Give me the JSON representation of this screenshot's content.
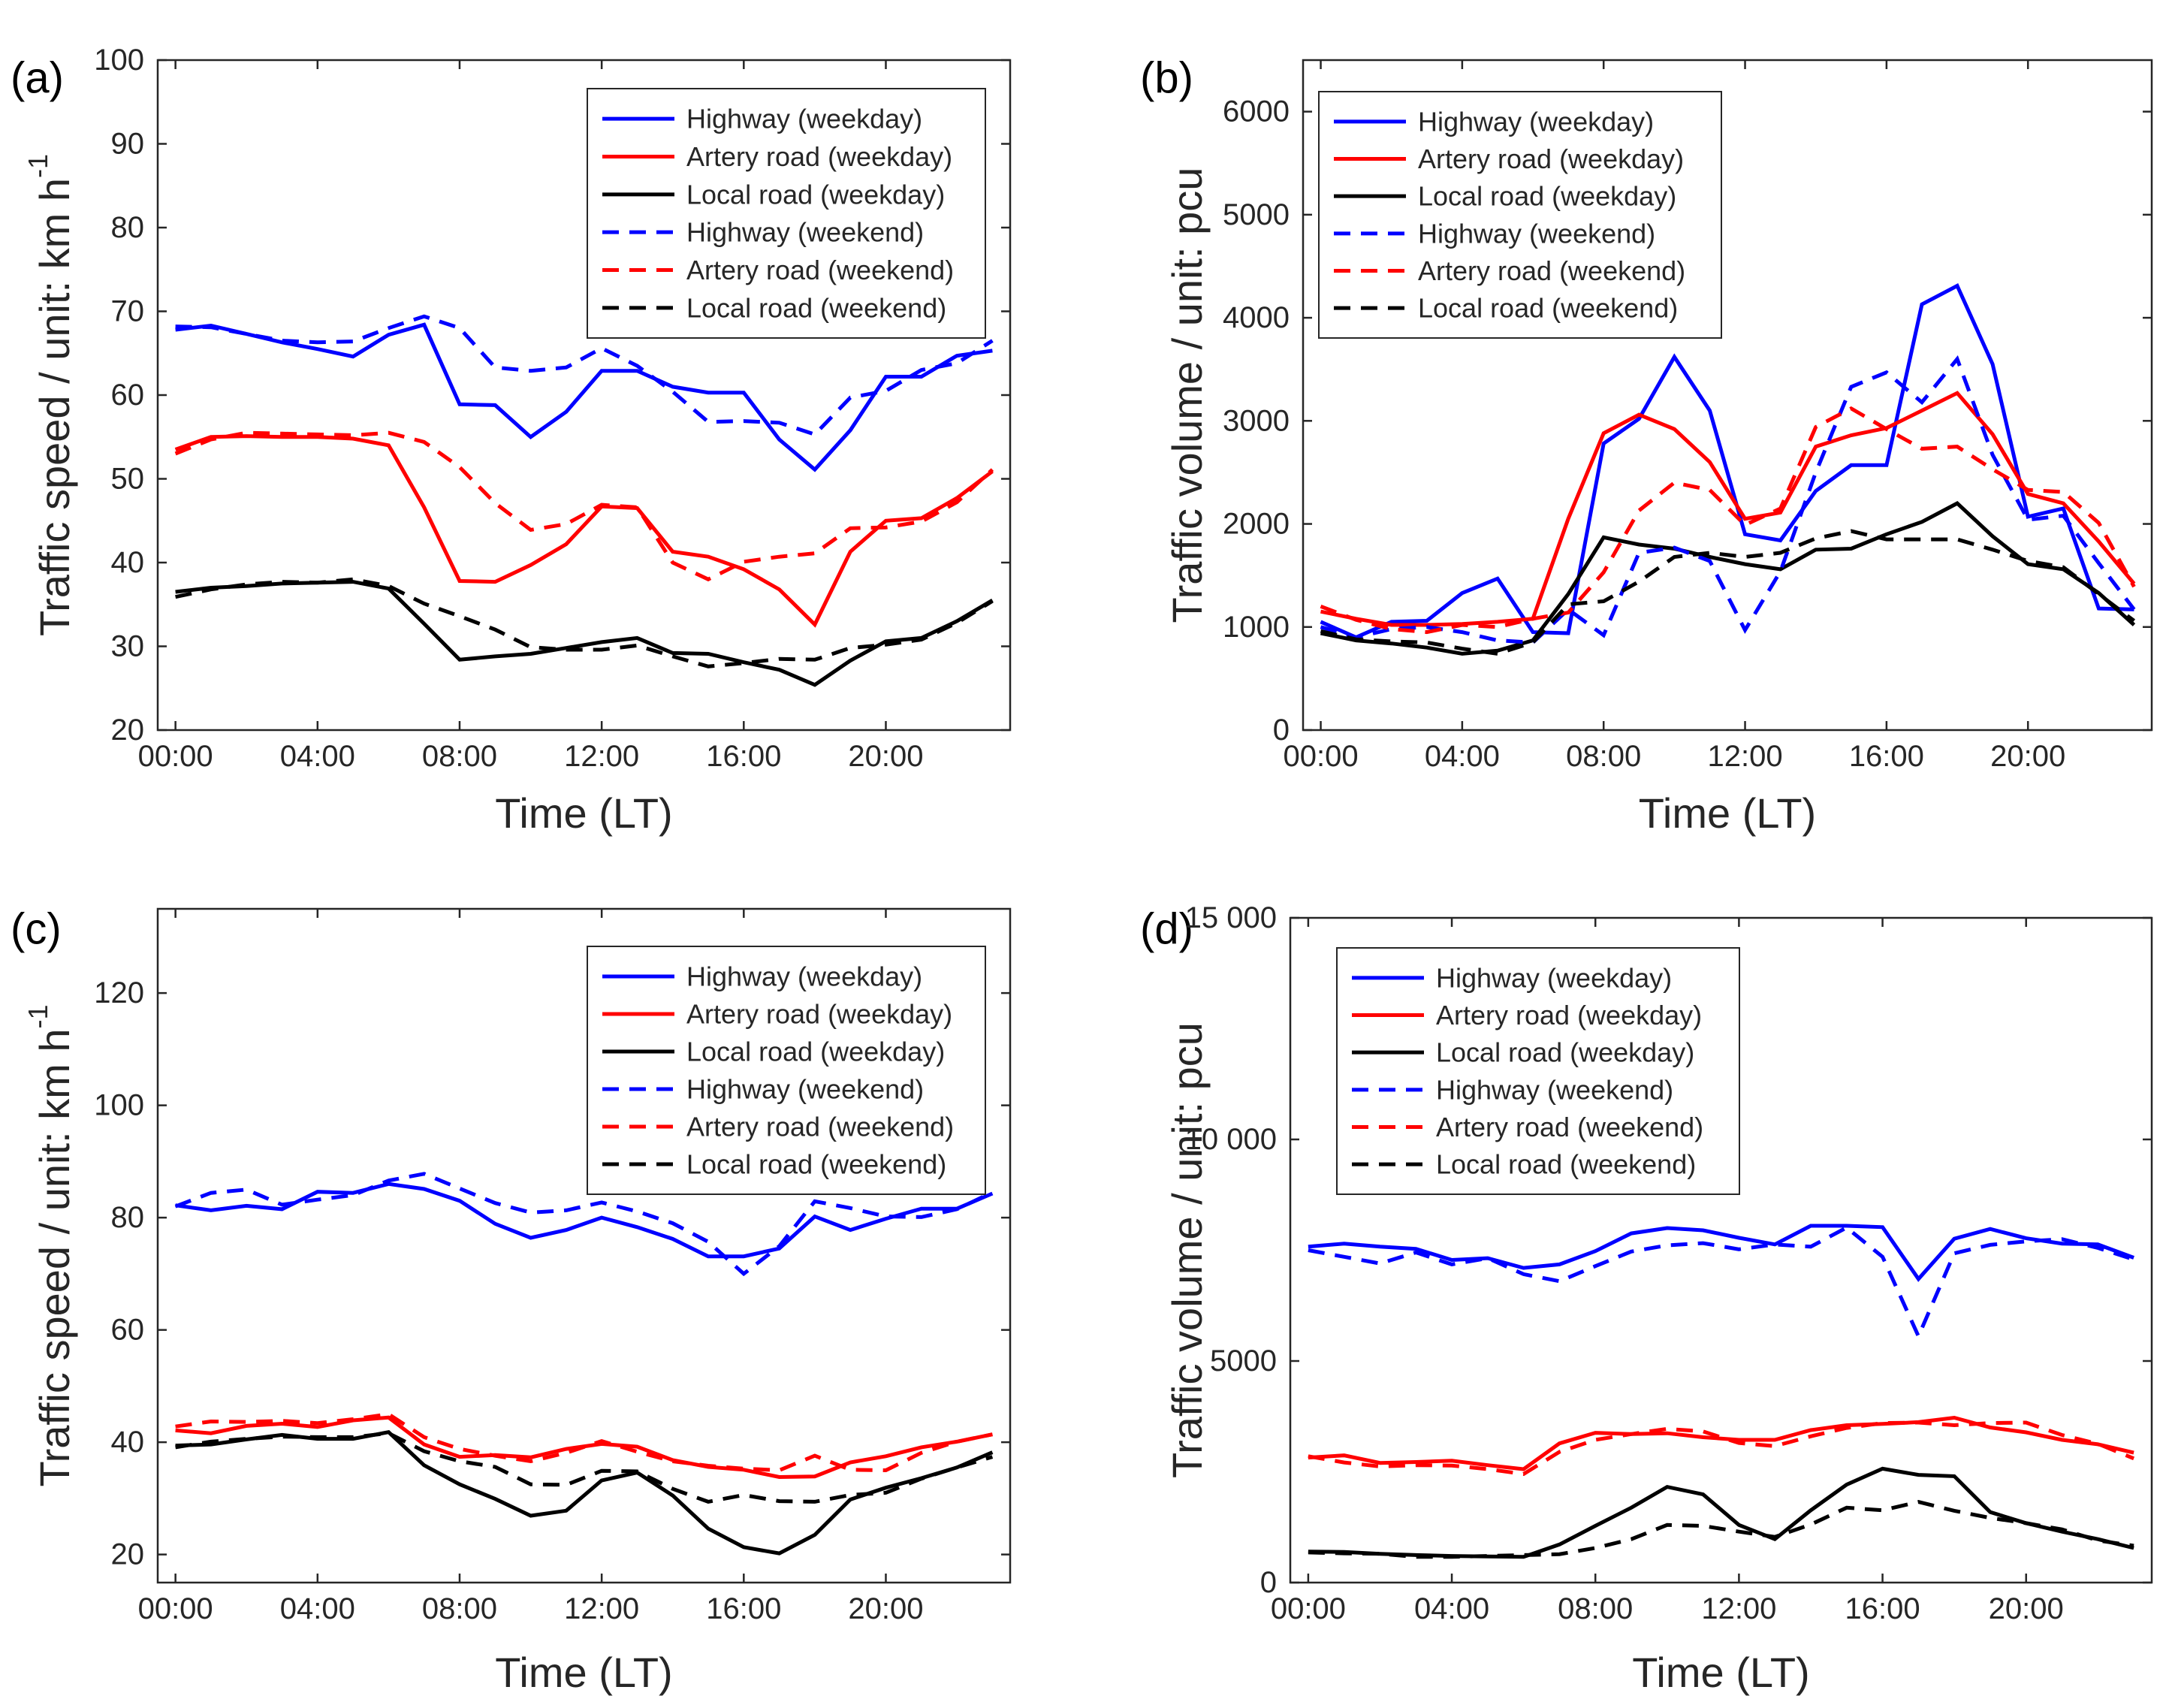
{
  "figure": {
    "background": "#ffffff",
    "axis_color": "#262626"
  },
  "series_styles": [
    {
      "color": "#0000ff",
      "dash": "solid"
    },
    {
      "color": "#ff0000",
      "dash": "solid"
    },
    {
      "color": "#000000",
      "dash": "solid"
    },
    {
      "color": "#0000ff",
      "dash": "dashed"
    },
    {
      "color": "#ff0000",
      "dash": "dashed"
    },
    {
      "color": "#000000",
      "dash": "dashed"
    }
  ],
  "chart_data": [
    {
      "panel": "(a)",
      "type": "line",
      "xlabel": "Time (LT)",
      "ylabel": "Traffic speed / unit: km h",
      "ylabel_superscript": "-1",
      "x": [
        0,
        1,
        2,
        3,
        4,
        5,
        6,
        7,
        8,
        9,
        10,
        11,
        12,
        13,
        14,
        15,
        16,
        17,
        18,
        19,
        20,
        21,
        22,
        23
      ],
      "xlim": [
        -0.5,
        23.5
      ],
      "ylim": [
        20,
        100
      ],
      "xticks": [
        0,
        4,
        8,
        12,
        16,
        20
      ],
      "xtick_labels": [
        "00:00",
        "04:00",
        "08:00",
        "12:00",
        "16:00",
        "20:00"
      ],
      "yticks": [
        20,
        30,
        40,
        50,
        60,
        70,
        80,
        90,
        100
      ],
      "ytick_labels": [
        "20",
        "30",
        "40",
        "50",
        "60",
        "70",
        "80",
        "90",
        "100"
      ],
      "grid": false,
      "legend_position": "top-right",
      "series": [
        {
          "name": "Highway (weekday)",
          "values": [
            67.8,
            68.3,
            67.3,
            66.3,
            65.5,
            64.6,
            67.2,
            68.4,
            58.9,
            58.8,
            55,
            58,
            62.9,
            62.9,
            61,
            60.3,
            60.3,
            54.7,
            51.1,
            55.8,
            62.2,
            62.2,
            64.7,
            65.3
          ]
        },
        {
          "name": "Artery road (weekday)",
          "values": [
            53.5,
            55,
            55.1,
            55,
            55,
            54.8,
            54,
            46.6,
            37.8,
            37.7,
            39.7,
            42.2,
            46.7,
            46.5,
            41.3,
            40.7,
            39.2,
            36.8,
            32.6,
            41.3,
            45,
            45.3,
            47.7,
            50.9
          ]
        },
        {
          "name": "Local road (weekday)",
          "values": [
            36.5,
            37,
            37.2,
            37.5,
            37.6,
            37.7,
            36.9,
            32.7,
            28.4,
            28.8,
            29.1,
            29.8,
            30.5,
            31,
            29.2,
            29.1,
            28.1,
            27.2,
            25.4,
            28.3,
            30.6,
            31,
            33,
            35.5
          ]
        },
        {
          "name": "Highway (weekend)",
          "values": [
            68.2,
            68.1,
            67.3,
            66.5,
            66.3,
            66.4,
            68,
            69.4,
            68,
            63.3,
            62.9,
            63.3,
            65.6,
            63.5,
            60.4,
            56.8,
            56.9,
            56.7,
            55.3,
            59.7,
            60.5,
            63,
            63.8,
            66.5
          ]
        },
        {
          "name": "Artery road (weekend)",
          "values": [
            53,
            54.7,
            55.5,
            55.4,
            55.3,
            55.2,
            55.5,
            54.4,
            51.4,
            47.1,
            43.9,
            44.6,
            46.9,
            46.6,
            40,
            38,
            40.1,
            40.7,
            41.1,
            44.1,
            44.2,
            44.9,
            47.2,
            51.1
          ]
        },
        {
          "name": "Local road (weekend)",
          "values": [
            35.9,
            36.8,
            37.4,
            37.7,
            37.6,
            38,
            37.2,
            35.1,
            33.6,
            32,
            29.9,
            29.6,
            29.6,
            30.1,
            28.8,
            27.6,
            28,
            28.5,
            28.4,
            29.8,
            30.2,
            30.8,
            32.8,
            35.4
          ]
        }
      ]
    },
    {
      "panel": "(b)",
      "type": "line",
      "xlabel": "Time (LT)",
      "ylabel": "Traffic volume / unit: pcu",
      "x": [
        0,
        1,
        2,
        3,
        4,
        5,
        6,
        7,
        8,
        9,
        10,
        11,
        12,
        13,
        14,
        15,
        16,
        17,
        18,
        19,
        20,
        21,
        22,
        23
      ],
      "xlim": [
        -0.5,
        23.5
      ],
      "ylim": [
        0,
        6500
      ],
      "xticks": [
        0,
        4,
        8,
        12,
        16,
        20
      ],
      "xtick_labels": [
        "00:00",
        "04:00",
        "08:00",
        "12:00",
        "16:00",
        "20:00"
      ],
      "yticks": [
        0,
        1000,
        2000,
        3000,
        4000,
        5000,
        6000
      ],
      "ytick_labels": [
        "0",
        "1000",
        "2000",
        "3000",
        "4000",
        "5000",
        "6000"
      ],
      "grid": false,
      "legend_position": "top-left",
      "series": [
        {
          "name": "Highway (weekday)",
          "values": [
            1050,
            900,
            1050,
            1060,
            1330,
            1470,
            950,
            940,
            2780,
            3020,
            3620,
            3100,
            1900,
            1840,
            2320,
            2570,
            2570,
            4130,
            4310,
            3550,
            2070,
            2150,
            1180,
            1170
          ]
        },
        {
          "name": "Artery road (weekday)",
          "values": [
            1150,
            1080,
            1020,
            1020,
            1030,
            1050,
            1080,
            2050,
            2880,
            3060,
            2920,
            2600,
            2050,
            2110,
            2750,
            2860,
            2930,
            3100,
            3270,
            2870,
            2290,
            2200,
            1830,
            1420
          ]
        },
        {
          "name": "Local road (weekday)",
          "values": [
            940,
            870,
            840,
            800,
            740,
            770,
            870,
            1320,
            1870,
            1800,
            1760,
            1680,
            1610,
            1560,
            1750,
            1760,
            1900,
            2020,
            2200,
            1880,
            1610,
            1560,
            1330,
            1020
          ]
        },
        {
          "name": "Highway (weekend)",
          "values": [
            1000,
            900,
            980,
            1000,
            950,
            870,
            850,
            1170,
            920,
            1720,
            1770,
            1640,
            970,
            1540,
            2500,
            3330,
            3470,
            3180,
            3600,
            2670,
            2040,
            2080,
            1620,
            1170
          ]
        },
        {
          "name": "Artery road (weekend)",
          "values": [
            1200,
            1070,
            980,
            950,
            1020,
            1000,
            1080,
            1140,
            1530,
            2130,
            2400,
            2330,
            1990,
            2150,
            2940,
            3120,
            2920,
            2730,
            2750,
            2530,
            2330,
            2310,
            2010,
            1390
          ]
        },
        {
          "name": "Local road (weekend)",
          "values": [
            960,
            880,
            860,
            850,
            790,
            740,
            850,
            1220,
            1250,
            1440,
            1680,
            1720,
            1680,
            1720,
            1860,
            1930,
            1850,
            1850,
            1850,
            1750,
            1640,
            1580,
            1320,
            1060
          ]
        }
      ]
    },
    {
      "panel": "(c)",
      "type": "line",
      "xlabel": "Time (LT)",
      "ylabel": "Traffic speed / unit: km h",
      "ylabel_superscript": "-1",
      "x": [
        0,
        1,
        2,
        3,
        4,
        5,
        6,
        7,
        8,
        9,
        10,
        11,
        12,
        13,
        14,
        15,
        16,
        17,
        18,
        19,
        20,
        21,
        22,
        23
      ],
      "xlim": [
        -0.5,
        23.5
      ],
      "ylim": [
        15,
        135
      ],
      "xticks": [
        0,
        4,
        8,
        12,
        16,
        20
      ],
      "xtick_labels": [
        "00:00",
        "04:00",
        "08:00",
        "12:00",
        "16:00",
        "20:00"
      ],
      "yticks": [
        20,
        40,
        60,
        80,
        100,
        120
      ],
      "ytick_labels": [
        "20",
        "40",
        "60",
        "80",
        "100",
        "120"
      ],
      "grid": false,
      "legend_position": "top-right",
      "series": [
        {
          "name": "Highway (weekday)",
          "values": [
            82.2,
            81.3,
            82.1,
            81.5,
            84.6,
            84.4,
            86,
            85.1,
            83,
            78.9,
            76.4,
            77.8,
            80,
            78.3,
            76.2,
            73.1,
            73.1,
            74.5,
            80.2,
            77.8,
            79.8,
            81.6,
            81.6,
            84.3
          ]
        },
        {
          "name": "Artery road (weekday)",
          "values": [
            42.1,
            41.6,
            42.9,
            43.3,
            42.7,
            43.9,
            44.4,
            39.6,
            37.4,
            37.7,
            37.3,
            38.8,
            39.7,
            39.2,
            36.8,
            35.6,
            35.1,
            33.8,
            33.9,
            36.4,
            37.5,
            39.1,
            40.1,
            41.4
          ]
        },
        {
          "name": "Local road (weekday)",
          "values": [
            39.4,
            39.6,
            40.5,
            41.3,
            40.6,
            40.6,
            41.8,
            35.9,
            32.5,
            29.9,
            26.9,
            27.8,
            33.2,
            34.6,
            30.5,
            24.6,
            21.3,
            20.2,
            23.5,
            29.8,
            31.9,
            33.6,
            35.5,
            38.2
          ]
        },
        {
          "name": "Highway (weekend)",
          "values": [
            82,
            84.4,
            85,
            82.3,
            83.2,
            84,
            86.6,
            87.8,
            85.2,
            82.6,
            80.9,
            81.3,
            82.7,
            81.1,
            79,
            75.7,
            70,
            74.9,
            82.9,
            81.7,
            80.2,
            80.1,
            81.5,
            84.5
          ]
        },
        {
          "name": "Artery road (weekend)",
          "values": [
            42.8,
            43.7,
            43.6,
            43.8,
            43.4,
            44.1,
            45,
            40.9,
            38.8,
            37.6,
            36.6,
            38.1,
            40.2,
            38.3,
            36.6,
            35.8,
            35.3,
            35,
            37.6,
            35.1,
            35,
            38.1,
            40.1,
            41.4
          ]
        },
        {
          "name": "Local road (weekend)",
          "values": [
            39.1,
            40.1,
            40.6,
            41,
            40.9,
            40.9,
            41.6,
            38.4,
            36.6,
            35.6,
            32.5,
            32.4,
            34.9,
            34.8,
            31.7,
            29.4,
            30.6,
            29.5,
            29.4,
            30.6,
            31,
            33.5,
            35.5,
            37.4
          ]
        }
      ]
    },
    {
      "panel": "(d)",
      "type": "line",
      "xlabel": "Time (LT)",
      "ylabel": "Traffic volume / unit: pcu",
      "x": [
        0,
        1,
        2,
        3,
        4,
        5,
        6,
        7,
        8,
        9,
        10,
        11,
        12,
        13,
        14,
        15,
        16,
        17,
        18,
        19,
        20,
        21,
        22,
        23
      ],
      "xlim": [
        -0.5,
        23.5
      ],
      "ylim": [
        0,
        15000
      ],
      "xticks": [
        0,
        4,
        8,
        12,
        16,
        20
      ],
      "xtick_labels": [
        "00:00",
        "04:00",
        "08:00",
        "12:00",
        "16:00",
        "20:00"
      ],
      "yticks": [
        0,
        5000,
        10000,
        15000
      ],
      "ytick_labels": [
        "0",
        "5000",
        "10 000",
        "15 000"
      ],
      "grid": false,
      "legend_position": "top-left",
      "series": [
        {
          "name": "Highway (weekday)",
          "values": [
            7580,
            7650,
            7580,
            7530,
            7280,
            7320,
            7100,
            7180,
            7480,
            7880,
            8000,
            7950,
            7780,
            7630,
            8050,
            8050,
            8020,
            6850,
            7760,
            7980,
            7770,
            7650,
            7630,
            7330
          ]
        },
        {
          "name": "Artery road (weekday)",
          "values": [
            2820,
            2870,
            2700,
            2720,
            2750,
            2650,
            2560,
            3140,
            3380,
            3350,
            3370,
            3280,
            3220,
            3220,
            3440,
            3550,
            3580,
            3620,
            3720,
            3500,
            3390,
            3220,
            3120,
            2930
          ]
        },
        {
          "name": "Local road (weekday)",
          "values": [
            700,
            690,
            650,
            620,
            600,
            590,
            580,
            860,
            1280,
            1690,
            2160,
            1990,
            1300,
            980,
            1630,
            2210,
            2570,
            2430,
            2400,
            1590,
            1340,
            1150,
            980,
            780
          ]
        },
        {
          "name": "Highway (weekend)",
          "values": [
            7500,
            7350,
            7200,
            7450,
            7180,
            7320,
            6960,
            6800,
            7140,
            7470,
            7610,
            7660,
            7520,
            7630,
            7580,
            8010,
            7350,
            5560,
            7430,
            7620,
            7700,
            7750,
            7550,
            7290
          ]
        },
        {
          "name": "Artery road (weekend)",
          "values": [
            2850,
            2710,
            2620,
            2650,
            2640,
            2560,
            2450,
            2950,
            3220,
            3350,
            3470,
            3410,
            3150,
            3080,
            3300,
            3490,
            3600,
            3610,
            3550,
            3600,
            3610,
            3330,
            3130,
            2800
          ]
        },
        {
          "name": "Local road (weekend)",
          "values": [
            680,
            660,
            650,
            580,
            580,
            600,
            620,
            640,
            780,
            980,
            1300,
            1280,
            1150,
            1030,
            1310,
            1690,
            1630,
            1820,
            1620,
            1460,
            1340,
            1200,
            950,
            830
          ]
        }
      ]
    }
  ]
}
